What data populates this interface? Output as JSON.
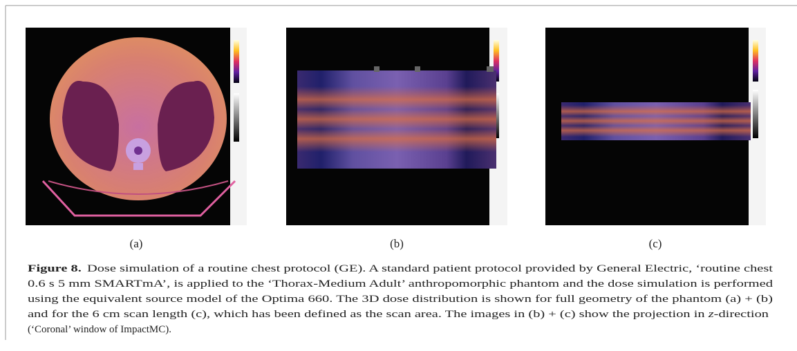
{
  "figure": {
    "panels": [
      {
        "label": "(a)"
      },
      {
        "label": "(b)"
      },
      {
        "label": "(c)"
      }
    ],
    "caption": {
      "label": "Figure 8.",
      "line1": "Dose simulation of a routine chest protocol (GE). A standard patient protocol provided by General Electric, ‘routine chest",
      "line2": "0.6 s 5 mm SMARTmA’, is applied to the ‘Thorax-Medium Adult’ anthropomorphic phantom and the dose simulation is performed",
      "line3": "using the equivalent source model of the Optima 660. The 3D dose distribution is shown for full geometry of the phantom (a) + (b)",
      "line4": [
        "and for the 6 cm scan length (c), which has been defined as the scan area. The images in (b) + (c) show the projection in ",
        "z",
        "-direction"
      ],
      "line5": "(‘Coronal’ window of ImpactMC)."
    }
  }
}
